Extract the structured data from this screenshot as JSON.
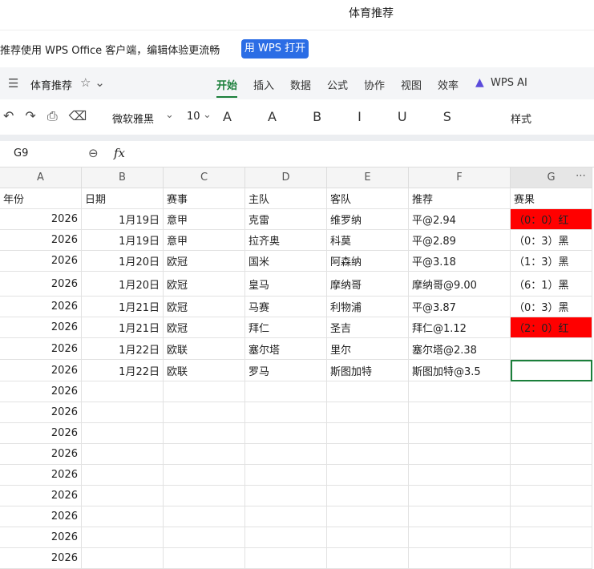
{
  "header": {
    "title": "体育推荐"
  },
  "banner": {
    "text": "推荐使用 WPS Office 客户端，编辑体验更流畅",
    "button": "用 WPS 打开"
  },
  "menu": {
    "doc_name": "体育推荐",
    "tabs": [
      "开始",
      "插入",
      "数据",
      "公式",
      "协作",
      "视图",
      "效率",
      "WPS AI"
    ]
  },
  "toolbar": {
    "font": "微软雅黑",
    "size": "10",
    "style": "样式"
  },
  "formula_bar": {
    "cell": "G9",
    "fx": "fx"
  },
  "table": {
    "columns": [
      "A",
      "B",
      "C",
      "D",
      "E",
      "F",
      "G"
    ],
    "rows": [
      [
        "年份",
        "日期",
        "赛事",
        "主队",
        "客队",
        "推荐",
        "赛果"
      ],
      [
        "2026",
        "1月19日",
        "意甲",
        "克雷",
        "维罗纳",
        "平@2.94",
        "（0：0）红"
      ],
      [
        "2026",
        "1月19日",
        "意甲",
        "拉齐奥",
        "科莫",
        "平@2.89",
        "（0：3）黑"
      ],
      [
        "2026",
        "1月20日",
        "欧冠",
        "国米",
        "阿森纳",
        "平@3.18",
        "（1：3）黑"
      ],
      [
        "2026",
        "1月20日",
        "欧冠",
        "皇马",
        "摩纳哥",
        "摩纳哥@9.00",
        "（6：1）黑"
      ],
      [
        "2026",
        "1月21日",
        "欧冠",
        "马赛",
        "利物浦",
        "平@3.87",
        "（0：3）黑"
      ],
      [
        "2026",
        "1月21日",
        "欧冠",
        "拜仁",
        "圣吉",
        "拜仁@1.12",
        "（2：0）红"
      ],
      [
        "2026",
        "1月22日",
        "欧联",
        "塞尔塔",
        "里尔",
        "塞尔塔@2.38",
        ""
      ],
      [
        "2026",
        "1月22日",
        "欧联",
        "罗马",
        "斯图加特",
        "斯图加特@3.5",
        ""
      ],
      [
        "2026"
      ],
      [
        "2026"
      ],
      [
        "2026"
      ],
      [
        "2026"
      ],
      [
        "2026"
      ],
      [
        "2026"
      ],
      [
        "2026"
      ],
      [
        "2026"
      ],
      [
        "2026"
      ]
    ]
  }
}
